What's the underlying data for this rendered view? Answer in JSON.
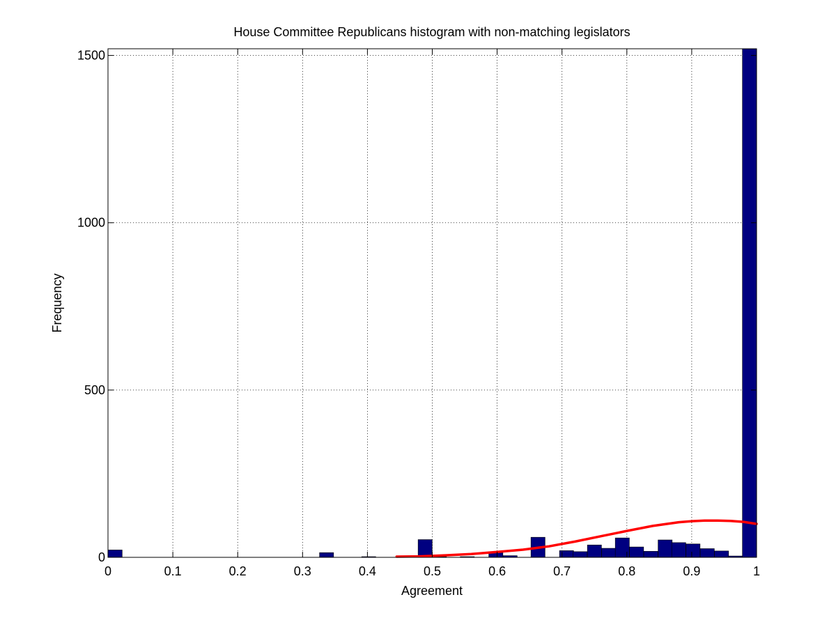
{
  "chart_data": {
    "type": "bar",
    "title": "House Committee Republicans histogram with non-matching legislators",
    "xlabel": "Agreement",
    "ylabel": "Frequency",
    "xlim": [
      0,
      1
    ],
    "ylim": [
      0,
      1520
    ],
    "x_ticks": [
      "0",
      "0.1",
      "0.2",
      "0.3",
      "0.4",
      "0.5",
      "0.6",
      "0.7",
      "0.8",
      "0.9",
      "1"
    ],
    "y_ticks": [
      "0",
      "500",
      "1000",
      "1500"
    ],
    "grid": true,
    "bin_width": 0.0217,
    "bar_color": "#000080",
    "fit_color": "#ff0000",
    "bins": [
      {
        "x": 0.011,
        "value": 22
      },
      {
        "x": 0.337,
        "value": 14
      },
      {
        "x": 0.402,
        "value": 2
      },
      {
        "x": 0.489,
        "value": 53
      },
      {
        "x": 0.511,
        "value": 2
      },
      {
        "x": 0.554,
        "value": 2
      },
      {
        "x": 0.598,
        "value": 14
      },
      {
        "x": 0.62,
        "value": 5
      },
      {
        "x": 0.663,
        "value": 60
      },
      {
        "x": 0.707,
        "value": 20
      },
      {
        "x": 0.728,
        "value": 17
      },
      {
        "x": 0.75,
        "value": 37
      },
      {
        "x": 0.772,
        "value": 27
      },
      {
        "x": 0.793,
        "value": 58
      },
      {
        "x": 0.815,
        "value": 31
      },
      {
        "x": 0.837,
        "value": 18
      },
      {
        "x": 0.859,
        "value": 52
      },
      {
        "x": 0.88,
        "value": 44
      },
      {
        "x": 0.902,
        "value": 40
      },
      {
        "x": 0.924,
        "value": 26
      },
      {
        "x": 0.946,
        "value": 19
      },
      {
        "x": 0.967,
        "value": 4
      },
      {
        "x": 0.989,
        "value": 1520
      }
    ],
    "fit_curve": {
      "x": [
        0.445,
        0.48,
        0.52,
        0.56,
        0.6,
        0.64,
        0.68,
        0.72,
        0.76,
        0.8,
        0.84,
        0.88,
        0.9,
        0.92,
        0.94,
        0.96,
        0.98,
        1.0
      ],
      "y": [
        2,
        3,
        6,
        10,
        16,
        23,
        33,
        47,
        63,
        79,
        94,
        105,
        108,
        110,
        110,
        109,
        106,
        100
      ]
    }
  }
}
